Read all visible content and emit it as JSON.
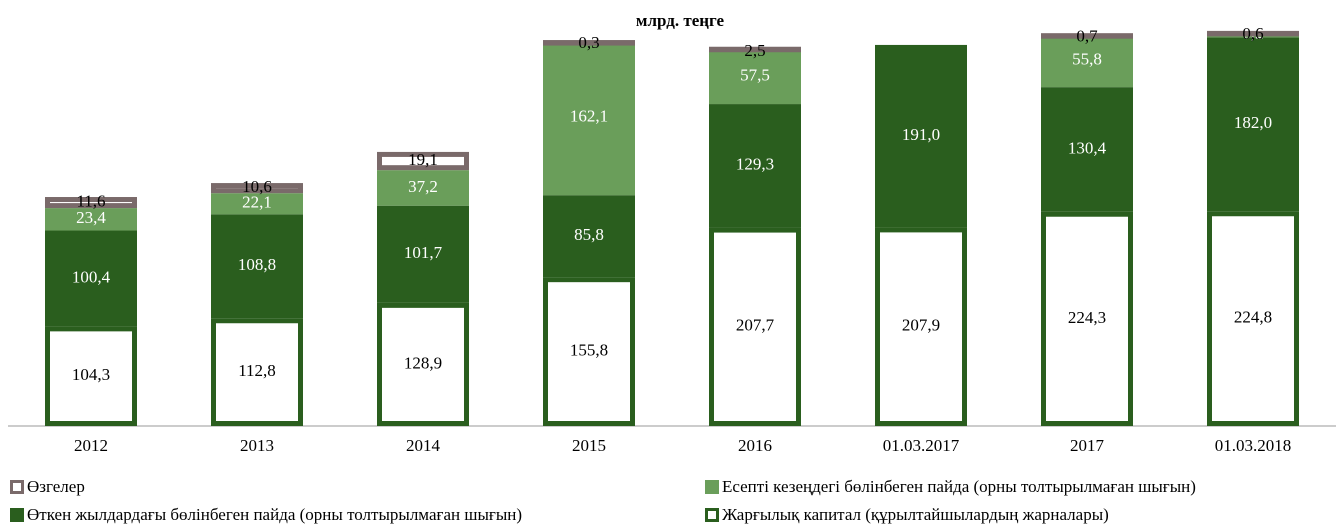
{
  "chart_data": {
    "type": "stacked_bar",
    "title": "млрд. теңге",
    "categories": [
      "2012",
      "2013",
      "2014",
      "2015",
      "2016",
      "01.03.2017",
      "2017",
      "01.03.2018"
    ],
    "ylim": [
      0,
      425
    ],
    "series": [
      {
        "name": "Жарғылық капитал (құрылтайшылардың жарналары)",
        "color": "#ffffff",
        "stroke": "#2a5e1e",
        "text_color": "#000000",
        "values": [
          104.3,
          112.8,
          128.9,
          155.8,
          207.7,
          207.9,
          224.3,
          224.8
        ],
        "value_labels": [
          "104,3",
          "112,8",
          "128,9",
          "155,8",
          "207,7",
          "207,9",
          "224,3",
          "224,8"
        ]
      },
      {
        "name": "Өткен жылдардағы бөлінбеген пайда (орны толтырылмаған шығын)",
        "color": "#2a5e1e",
        "stroke": "#2a5e1e",
        "text_color": "#ffffff",
        "values": [
          100.4,
          108.8,
          101.7,
          85.8,
          129.3,
          191.0,
          130.4,
          182.0
        ],
        "value_labels": [
          "100,4",
          "108,8",
          "101,7",
          "85,8",
          "129,3",
          "191,0",
          "130,4",
          "182,0"
        ]
      },
      {
        "name": "Есепті кезеңдегі бөлінбеген пайда (орны толтырылмаған шығын)",
        "color": "#6a9e5a",
        "stroke": "#6a9e5a",
        "text_color": "#ffffff",
        "values": [
          23.4,
          22.1,
          37.2,
          162.1,
          57.5,
          null,
          55.8,
          6.2
        ],
        "value_labels": [
          "23,4",
          "22,1",
          "37,2",
          "162,1",
          "57,5",
          null,
          "55,8",
          "6,2"
        ]
      },
      {
        "name": "Өзгелер",
        "color": "#ffffff",
        "stroke": "#7a6a6a",
        "text_color": "#000000",
        "values": [
          11.6,
          10.6,
          19.1,
          0.3,
          2.5,
          null,
          0.7,
          0.6
        ],
        "value_labels": [
          "11,6",
          "10,6",
          "19,1",
          "0,3",
          "2,5",
          null,
          "0,7",
          "0,6"
        ]
      }
    ]
  }
}
